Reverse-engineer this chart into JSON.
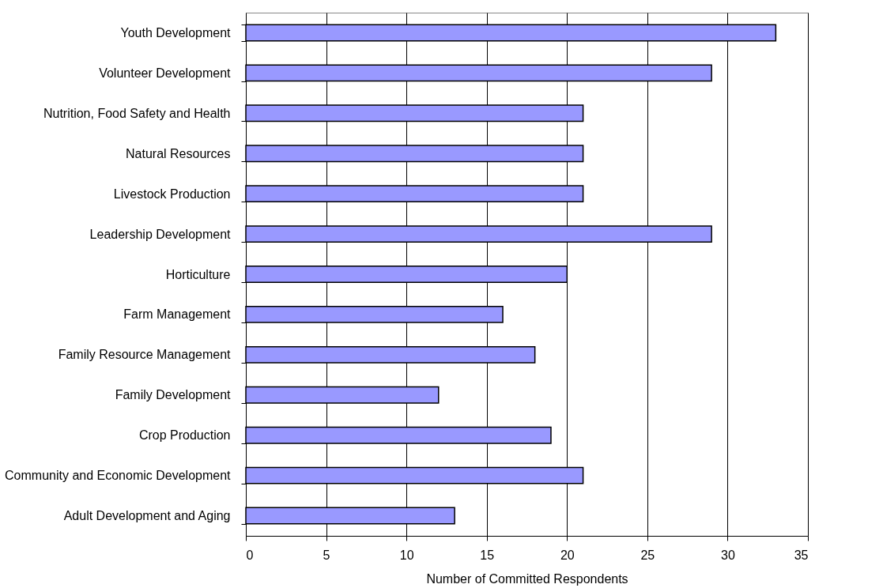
{
  "chart_data": {
    "type": "bar",
    "orientation": "horizontal",
    "xlabel": "Number of Committed Respondents",
    "categories": [
      "Youth Development",
      "Volunteer Development",
      "Nutrition, Food Safety and Health",
      "Natural Resources",
      "Livestock Production",
      "Leadership Development",
      "Horticulture",
      "Farm Management",
      "Family Resource Management",
      "Family Development",
      "Crop Production",
      "Community and Economic Development",
      "Adult Development and Aging"
    ],
    "values": [
      33,
      29,
      21,
      21,
      21,
      29,
      20,
      16,
      18,
      12,
      19,
      21,
      13
    ],
    "color": "#9999ff",
    "xlim": [
      0,
      35
    ],
    "xticks": [
      0,
      5,
      10,
      15,
      20,
      25,
      30,
      35
    ],
    "grid": "x"
  }
}
